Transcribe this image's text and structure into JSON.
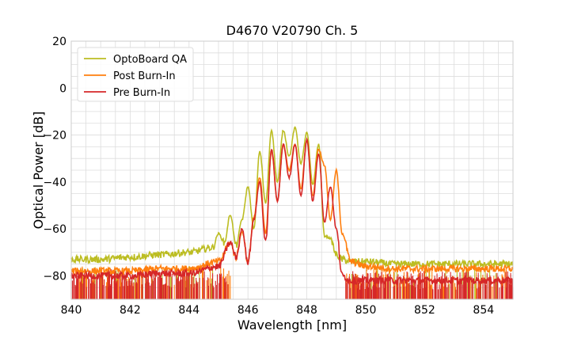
{
  "chart_data": {
    "type": "line",
    "title": "D4670 V20790 Ch. 5",
    "xlabel": "Wavelength [nm]",
    "ylabel": "Optical Power [dB]",
    "xlim": [
      840,
      855
    ],
    "ylim": [
      -90,
      20
    ],
    "xticks": [
      840,
      842,
      844,
      846,
      848,
      850,
      852,
      854
    ],
    "yticks": [
      20,
      0,
      -20,
      -40,
      -60,
      -80
    ],
    "grid": true,
    "legend": "top-left",
    "noise_band": {
      "x_start": 840,
      "x_end": 855,
      "comment_free_level_top": -71
    },
    "series": [
      {
        "name": "OptoBoard QA",
        "color": "#bcbd22",
        "x": [
          840.0,
          841.0,
          842.0,
          843.0,
          844.0,
          844.8,
          845.0,
          845.2,
          845.4,
          845.6,
          845.8,
          846.0,
          846.2,
          846.4,
          846.6,
          846.8,
          847.0,
          847.2,
          847.4,
          847.6,
          847.8,
          848.0,
          848.2,
          848.4,
          848.6,
          848.8,
          849.0,
          849.2,
          849.5,
          850.0,
          851.0,
          852.0,
          853.0,
          854.0,
          855.0
        ],
        "y": [
          -73,
          -73,
          -72,
          -71,
          -70,
          -68,
          -62,
          -66,
          -54,
          -67,
          -56,
          -42,
          -60,
          -27,
          -49,
          -18,
          -40,
          -18,
          -29,
          -17,
          -32,
          -19,
          -41,
          -24,
          -63,
          -64,
          -71,
          -73,
          -74,
          -74,
          -75,
          -75,
          -75,
          -75,
          -75
        ]
      },
      {
        "name": "Post Burn-In",
        "color": "#ff7f0e",
        "x": [
          840.0,
          841.0,
          842.0,
          843.0,
          844.0,
          845.0,
          845.4,
          845.6,
          845.8,
          846.0,
          846.2,
          846.4,
          846.6,
          846.8,
          847.0,
          847.2,
          847.4,
          847.6,
          847.8,
          848.0,
          848.2,
          848.4,
          848.6,
          848.8,
          849.0,
          849.2,
          849.5,
          850.0,
          851.0,
          852.0,
          853.0,
          854.0,
          855.0
        ],
        "y": [
          -78,
          -78,
          -78,
          -77,
          -77,
          -74,
          -66,
          -72,
          -61,
          -74,
          -55,
          -38,
          -62,
          -27,
          -48,
          -24,
          -35,
          -24,
          -43,
          -22,
          -46,
          -26,
          -33,
          -56,
          -35,
          -62,
          -74,
          -76,
          -77,
          -77,
          -77,
          -77,
          -77
        ]
      },
      {
        "name": "Pre Burn-In",
        "color": "#d62728",
        "x": [
          840.0,
          841.0,
          842.0,
          843.0,
          844.0,
          845.0,
          845.4,
          845.6,
          845.8,
          846.0,
          846.2,
          846.4,
          846.6,
          846.8,
          847.0,
          847.2,
          847.4,
          847.6,
          847.8,
          848.0,
          848.2,
          848.4,
          848.6,
          848.8,
          849.0,
          849.2,
          849.5,
          850.0,
          851.0,
          852.0,
          853.0,
          854.0,
          855.0
        ],
        "y": [
          -80,
          -80,
          -80,
          -79,
          -79,
          -76,
          -66,
          -72,
          -60,
          -74,
          -56,
          -40,
          -66,
          -26,
          -48,
          -24,
          -38,
          -24,
          -46,
          -22,
          -48,
          -28,
          -57,
          -42,
          -60,
          -80,
          -82,
          -82,
          -82,
          -82,
          -82,
          -82,
          -82
        ]
      }
    ]
  }
}
